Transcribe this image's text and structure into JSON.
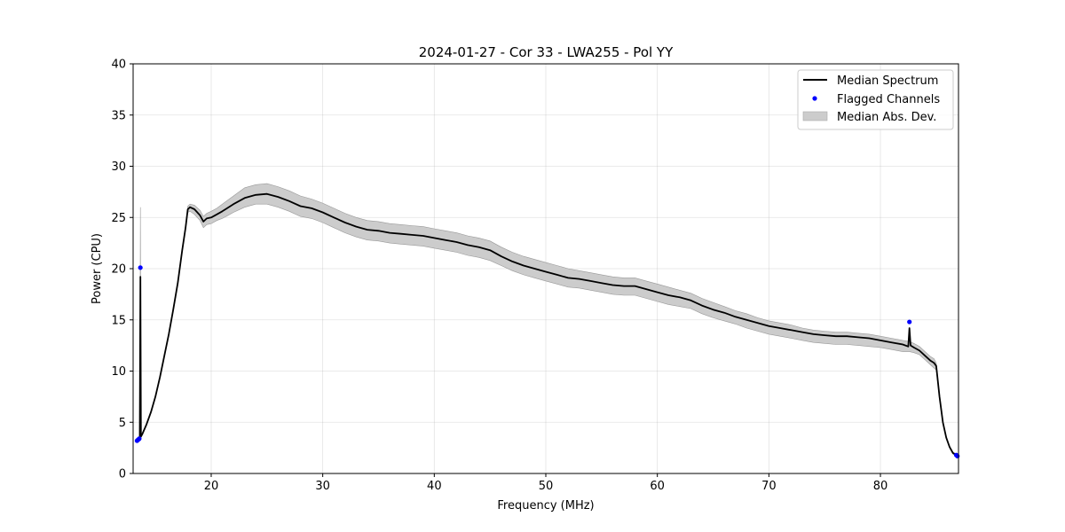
{
  "chart_data": {
    "type": "line",
    "title": "2024-01-27 - Cor 33 - LWA255 - Pol YY",
    "xlabel": "Frequency (MHz)",
    "ylabel": "Power (CPU)",
    "xlim": [
      13.0,
      87.0
    ],
    "ylim": [
      0,
      40
    ],
    "xticks": [
      20,
      30,
      40,
      50,
      60,
      70,
      80
    ],
    "yticks": [
      0,
      5,
      10,
      15,
      20,
      25,
      30,
      35,
      40
    ],
    "grid": true,
    "legend_position": "top-right",
    "legend": [
      {
        "label": "Median Spectrum",
        "kind": "line",
        "color": "#000000"
      },
      {
        "label": "Flagged Channels",
        "kind": "point",
        "color": "#0000ff"
      },
      {
        "label": "Median Abs. Dev.",
        "kind": "band",
        "color": "#cccccc"
      }
    ],
    "series": [
      {
        "name": "Median Spectrum",
        "kind": "line",
        "color": "#000000",
        "x": [
          13.3,
          13.5,
          13.6,
          13.65,
          13.7,
          13.75,
          13.8,
          14.2,
          14.6,
          15.0,
          15.4,
          15.8,
          16.2,
          16.6,
          17.0,
          17.4,
          17.7,
          17.9,
          18.1,
          18.5,
          19.0,
          19.3,
          19.6,
          20.0,
          20.5,
          21.0,
          22.0,
          23.0,
          24.0,
          25.0,
          26.0,
          27.0,
          28.0,
          29.0,
          30.0,
          31.0,
          32.0,
          33.0,
          34.0,
          35.0,
          36.0,
          37.0,
          38.0,
          39.0,
          40.0,
          41.0,
          42.0,
          43.0,
          44.0,
          45.0,
          46.0,
          47.0,
          48.0,
          49.0,
          50.0,
          51.0,
          52.0,
          53.0,
          54.0,
          55.0,
          56.0,
          57.0,
          58.0,
          59.0,
          60.0,
          61.0,
          62.0,
          63.0,
          64.0,
          65.0,
          66.0,
          67.0,
          68.0,
          69.0,
          70.0,
          71.0,
          72.0,
          73.0,
          74.0,
          75.0,
          76.0,
          77.0,
          78.0,
          79.0,
          80.0,
          81.0,
          82.0,
          82.5,
          82.6,
          82.7,
          83.0,
          83.5,
          84.0,
          84.5,
          84.8,
          85.0,
          85.3,
          85.6,
          85.9,
          86.2,
          86.5,
          86.8
        ],
        "y": [
          3.3,
          3.4,
          3.5,
          19.2,
          3.6,
          3.7,
          3.8,
          4.8,
          6.0,
          7.5,
          9.4,
          11.5,
          13.6,
          16.0,
          18.6,
          21.8,
          24.0,
          25.8,
          26.0,
          25.8,
          25.2,
          24.6,
          24.9,
          25.0,
          25.3,
          25.6,
          26.3,
          26.9,
          27.2,
          27.3,
          27.0,
          26.6,
          26.1,
          25.9,
          25.5,
          25.0,
          24.5,
          24.1,
          23.8,
          23.7,
          23.5,
          23.4,
          23.3,
          23.2,
          23.0,
          22.8,
          22.6,
          22.3,
          22.1,
          21.8,
          21.2,
          20.7,
          20.3,
          20.0,
          19.7,
          19.4,
          19.1,
          19.0,
          18.8,
          18.6,
          18.4,
          18.3,
          18.3,
          18.0,
          17.7,
          17.4,
          17.2,
          16.9,
          16.4,
          16.0,
          15.7,
          15.3,
          15.0,
          14.7,
          14.4,
          14.2,
          14.0,
          13.8,
          13.6,
          13.5,
          13.4,
          13.4,
          13.3,
          13.2,
          13.0,
          12.8,
          12.6,
          12.4,
          14.2,
          12.5,
          12.3,
          12.0,
          11.5,
          11.0,
          10.8,
          10.5,
          7.5,
          5.0,
          3.5,
          2.6,
          2.0,
          1.8
        ]
      },
      {
        "name": "Median Abs. Dev.",
        "kind": "band",
        "color": "#cccccc",
        "x": [
          13.3,
          13.5,
          13.6,
          13.65,
          13.7,
          13.8,
          14.2,
          14.6,
          15.0,
          15.4,
          15.8,
          16.2,
          16.6,
          17.0,
          17.4,
          17.7,
          17.9,
          18.1,
          18.5,
          19.0,
          19.3,
          19.6,
          20.0,
          20.5,
          21.0,
          22.0,
          23.0,
          24.0,
          25.0,
          26.0,
          27.0,
          28.0,
          29.0,
          30.0,
          31.0,
          32.0,
          33.0,
          34.0,
          35.0,
          36.0,
          37.0,
          38.0,
          39.0,
          40.0,
          41.0,
          42.0,
          43.0,
          44.0,
          45.0,
          46.0,
          47.0,
          48.0,
          49.0,
          50.0,
          51.0,
          52.0,
          53.0,
          54.0,
          55.0,
          56.0,
          57.0,
          58.0,
          59.0,
          60.0,
          61.0,
          62.0,
          63.0,
          64.0,
          65.0,
          66.0,
          67.0,
          68.0,
          69.0,
          70.0,
          71.0,
          72.0,
          73.0,
          74.0,
          75.0,
          76.0,
          77.0,
          78.0,
          79.0,
          80.0,
          81.0,
          82.0,
          82.6,
          83.0,
          83.5,
          84.0,
          84.5,
          84.8,
          85.0,
          85.3,
          85.6,
          85.9,
          86.2,
          86.5,
          86.8
        ],
        "upper": [
          3.4,
          3.5,
          3.6,
          26.0,
          3.8,
          3.9,
          4.9,
          6.1,
          7.6,
          9.5,
          11.6,
          13.7,
          16.1,
          18.8,
          22.0,
          24.2,
          26.1,
          26.3,
          26.2,
          25.7,
          25.1,
          25.4,
          25.6,
          25.9,
          26.3,
          27.1,
          27.9,
          28.2,
          28.3,
          28.0,
          27.6,
          27.1,
          26.8,
          26.4,
          25.9,
          25.4,
          25.0,
          24.7,
          24.6,
          24.4,
          24.3,
          24.2,
          24.1,
          23.9,
          23.7,
          23.5,
          23.2,
          23.0,
          22.7,
          22.1,
          21.6,
          21.2,
          20.9,
          20.6,
          20.3,
          20.0,
          19.8,
          19.6,
          19.4,
          19.2,
          19.1,
          19.1,
          18.8,
          18.5,
          18.2,
          17.9,
          17.6,
          17.1,
          16.7,
          16.3,
          15.9,
          15.6,
          15.2,
          14.9,
          14.7,
          14.5,
          14.2,
          14.0,
          13.9,
          13.8,
          13.8,
          13.7,
          13.6,
          13.4,
          13.2,
          13.0,
          12.9,
          12.7,
          12.4,
          11.9,
          11.4,
          11.2,
          10.8,
          7.6,
          5.1,
          3.6,
          2.7,
          2.1,
          1.9
        ],
        "lower": [
          3.2,
          3.3,
          3.4,
          3.4,
          3.5,
          3.7,
          4.7,
          5.9,
          7.4,
          9.3,
          11.4,
          13.5,
          15.9,
          18.4,
          21.6,
          23.8,
          25.5,
          25.6,
          25.3,
          24.7,
          24.0,
          24.3,
          24.4,
          24.7,
          24.9,
          25.5,
          26.0,
          26.3,
          26.3,
          26.0,
          25.6,
          25.1,
          24.9,
          24.5,
          24.0,
          23.5,
          23.1,
          22.8,
          22.7,
          22.5,
          22.4,
          22.3,
          22.2,
          22.0,
          21.8,
          21.6,
          21.3,
          21.1,
          20.8,
          20.3,
          19.8,
          19.4,
          19.1,
          18.8,
          18.5,
          18.2,
          18.1,
          17.9,
          17.7,
          17.5,
          17.4,
          17.4,
          17.1,
          16.8,
          16.5,
          16.3,
          16.1,
          15.6,
          15.2,
          14.9,
          14.6,
          14.2,
          13.9,
          13.6,
          13.4,
          13.2,
          13.0,
          12.8,
          12.7,
          12.6,
          12.6,
          12.5,
          12.4,
          12.3,
          12.1,
          11.9,
          11.9,
          11.8,
          11.6,
          11.1,
          10.6,
          10.3,
          10.1,
          7.4,
          4.9,
          3.4,
          2.5,
          1.9,
          1.7
        ]
      },
      {
        "name": "Flagged Channels",
        "kind": "scatter",
        "color": "#0000ff",
        "x": [
          13.35,
          13.45,
          13.55,
          13.65,
          82.6,
          86.8,
          86.9
        ],
        "y": [
          3.2,
          3.3,
          3.4,
          20.1,
          14.8,
          1.8,
          1.7
        ]
      }
    ]
  }
}
